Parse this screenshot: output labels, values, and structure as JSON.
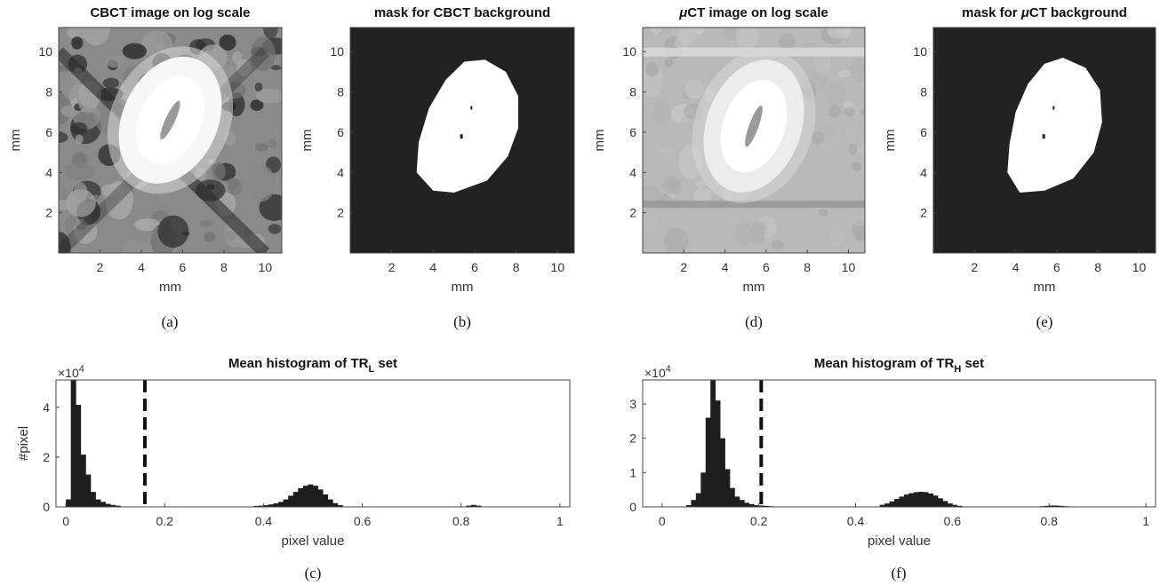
{
  "chart_data": [
    {
      "type": "heatmap",
      "panel": "(a)",
      "title": "CBCT image on log scale",
      "xlabel": "mm",
      "ylabel": "mm",
      "xticks": [
        2,
        4,
        6,
        8,
        10
      ],
      "yticks": [
        2,
        4,
        6,
        8,
        10
      ],
      "xlim": [
        0,
        10.8
      ],
      "ylim": [
        0,
        11.2
      ],
      "colormap": "gray",
      "object": {
        "cx": 5.4,
        "cy": 6.6,
        "rx": 2.3,
        "ry": 3.3,
        "rotation_deg": 25
      }
    },
    {
      "type": "heatmap",
      "panel": "(b)",
      "title": "mask for CBCT background",
      "xlabel": "mm",
      "ylabel": "mm",
      "xticks": [
        2,
        4,
        6,
        8,
        10
      ],
      "yticks": [
        2,
        4,
        6,
        8,
        10
      ],
      "xlim": [
        0,
        10.8
      ],
      "ylim": [
        0,
        11.2
      ],
      "colormap": "binary",
      "mask_outline": [
        [
          4.0,
          3.1
        ],
        [
          5.0,
          3.0
        ],
        [
          6.6,
          3.6
        ],
        [
          7.6,
          4.8
        ],
        [
          8.1,
          6.2
        ],
        [
          8.1,
          7.8
        ],
        [
          7.5,
          9.0
        ],
        [
          6.5,
          9.6
        ],
        [
          5.5,
          9.5
        ],
        [
          4.6,
          8.6
        ],
        [
          3.8,
          7.2
        ],
        [
          3.3,
          5.5
        ],
        [
          3.2,
          4.0
        ]
      ]
    },
    {
      "type": "bar",
      "panel": "(c)",
      "title": "Mean histogram of TR set",
      "title_subscript": "L",
      "xlabel": "pixel value",
      "ylabel": "#pixel",
      "y_multiplier": "×10",
      "y_multiplier_exp": "4",
      "xticks": [
        "0",
        "0.2",
        "0.4",
        "0.6",
        "0.8",
        "1"
      ],
      "yticks": [
        "0",
        "2",
        "4"
      ],
      "xlim": [
        -0.02,
        1.02
      ],
      "ylim": [
        0,
        5.1
      ],
      "threshold": 0.16,
      "x": [
        0.0,
        0.01,
        0.02,
        0.03,
        0.04,
        0.05,
        0.06,
        0.07,
        0.08,
        0.09,
        0.1,
        0.38,
        0.39,
        0.4,
        0.41,
        0.42,
        0.43,
        0.44,
        0.45,
        0.46,
        0.47,
        0.48,
        0.49,
        0.5,
        0.51,
        0.52,
        0.53,
        0.54,
        0.55,
        0.81,
        0.82,
        0.83
      ],
      "values": [
        0.3,
        5.1,
        4.1,
        2.1,
        1.3,
        0.6,
        0.3,
        0.2,
        0.12,
        0.08,
        0.05,
        0.04,
        0.05,
        0.07,
        0.1,
        0.14,
        0.2,
        0.3,
        0.45,
        0.6,
        0.75,
        0.85,
        0.9,
        0.85,
        0.7,
        0.5,
        0.3,
        0.15,
        0.07,
        0.05,
        0.08,
        0.05
      ]
    },
    {
      "type": "heatmap",
      "panel": "(d)",
      "title_prefix": "μ",
      "title": "CT image on log scale",
      "xlabel": "mm",
      "ylabel": "mm",
      "xticks": [
        2,
        4,
        6,
        8,
        10
      ],
      "yticks": [
        2,
        4,
        6,
        8,
        10
      ],
      "xlim": [
        0,
        10.8
      ],
      "ylim": [
        0,
        11.2
      ],
      "colormap": "gray",
      "object": {
        "cx": 5.4,
        "cy": 6.3,
        "rx": 2.3,
        "ry": 3.4,
        "rotation_deg": 20
      }
    },
    {
      "type": "heatmap",
      "panel": "(e)",
      "title_prefix": "mask for ",
      "title_mu": "μ",
      "title": "CT background",
      "xlabel": "mm",
      "ylabel": "mm",
      "xticks": [
        2,
        4,
        6,
        8,
        10
      ],
      "yticks": [
        2,
        4,
        6,
        8,
        10
      ],
      "xlim": [
        0,
        10.8
      ],
      "ylim": [
        0,
        11.2
      ],
      "colormap": "binary",
      "mask_outline": [
        [
          4.2,
          3.0
        ],
        [
          5.4,
          3.1
        ],
        [
          6.8,
          3.7
        ],
        [
          7.8,
          5.0
        ],
        [
          8.2,
          6.5
        ],
        [
          8.1,
          8.1
        ],
        [
          7.4,
          9.2
        ],
        [
          6.3,
          9.7
        ],
        [
          5.4,
          9.4
        ],
        [
          4.6,
          8.4
        ],
        [
          4.0,
          7.0
        ],
        [
          3.7,
          5.4
        ],
        [
          3.6,
          4.0
        ]
      ]
    },
    {
      "type": "bar",
      "panel": "(f)",
      "title": "Mean histogram of TR set",
      "title_subscript": "H",
      "xlabel": "pixel value",
      "ylabel": "",
      "y_multiplier": "×10",
      "y_multiplier_exp": "4",
      "xticks": [
        "0",
        "0.2",
        "0.4",
        "0.6",
        "0.8",
        "1"
      ],
      "yticks": [
        "0",
        "1",
        "2",
        "3"
      ],
      "xlim": [
        -0.04,
        1.02
      ],
      "ylim": [
        0,
        3.7
      ],
      "threshold": 0.205,
      "x": [
        0.05,
        0.06,
        0.07,
        0.08,
        0.09,
        0.1,
        0.11,
        0.12,
        0.13,
        0.14,
        0.15,
        0.16,
        0.17,
        0.18,
        0.19,
        0.2,
        0.21,
        0.22,
        0.45,
        0.46,
        0.47,
        0.48,
        0.49,
        0.5,
        0.51,
        0.52,
        0.53,
        0.54,
        0.55,
        0.56,
        0.57,
        0.58,
        0.59,
        0.6,
        0.61,
        0.78,
        0.79,
        0.8,
        0.81,
        0.82,
        0.83
      ],
      "values": [
        0.05,
        0.2,
        0.4,
        1.0,
        2.6,
        3.7,
        3.1,
        2.0,
        1.1,
        0.55,
        0.3,
        0.2,
        0.12,
        0.08,
        0.05,
        0.04,
        0.03,
        0.02,
        0.06,
        0.1,
        0.16,
        0.23,
        0.3,
        0.36,
        0.4,
        0.43,
        0.44,
        0.43,
        0.39,
        0.33,
        0.25,
        0.17,
        0.1,
        0.06,
        0.03,
        0.02,
        0.03,
        0.04,
        0.04,
        0.03,
        0.02
      ]
    }
  ]
}
